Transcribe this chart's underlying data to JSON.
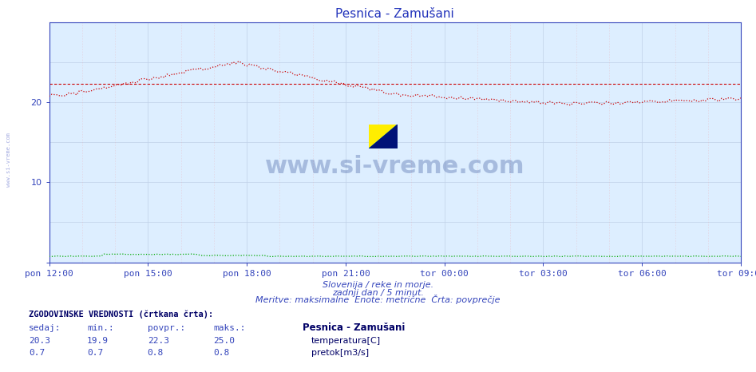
{
  "title": "Pesnica - Zamušani",
  "bg_color": "#ffffff",
  "plot_bg_color": "#ddeeff",
  "axis_color": "#3344bb",
  "title_color": "#2233bb",
  "grid_h_color": "#c0d0e8",
  "grid_v_minor_color": "#e8b8c0",
  "temp_color": "#cc0000",
  "flow_color": "#00aa00",
  "avg_color": "#cc0000",
  "avg_temp": 22.3,
  "ymin": 0,
  "ymax": 30,
  "yticks": [
    0,
    10,
    20
  ],
  "xtick_labels": [
    "pon 12:00",
    "pon 15:00",
    "pon 18:00",
    "pon 21:00",
    "tor 00:00",
    "tor 03:00",
    "tor 06:00",
    "tor 09:00"
  ],
  "watermark_text": "www.si-vreme.com",
  "watermark_color": "#1a3a8a",
  "sidebar_text": "www.si-vreme.com",
  "xlabel_line1": "Slovenija / reke in morje.",
  "xlabel_line2": "zadnji dan / 5 minut.",
  "xlabel_line3": "Meritve: maksimalne  Enote: metrične  Črta: povprečje",
  "hist_label": "ZGODOVINSKE VREDNOSTI (črtkana črta):",
  "col_headers": [
    "sedaj:",
    "min.:",
    "povpr.:",
    "maks.:"
  ],
  "legend_title": "Pesnica - Zamušani",
  "temp_row": [
    20.3,
    19.9,
    22.3,
    25.0
  ],
  "flow_row": [
    0.7,
    0.7,
    0.8,
    0.8
  ],
  "temp_label": "temperatura[C]",
  "flow_label": "pretok[m3/s]"
}
